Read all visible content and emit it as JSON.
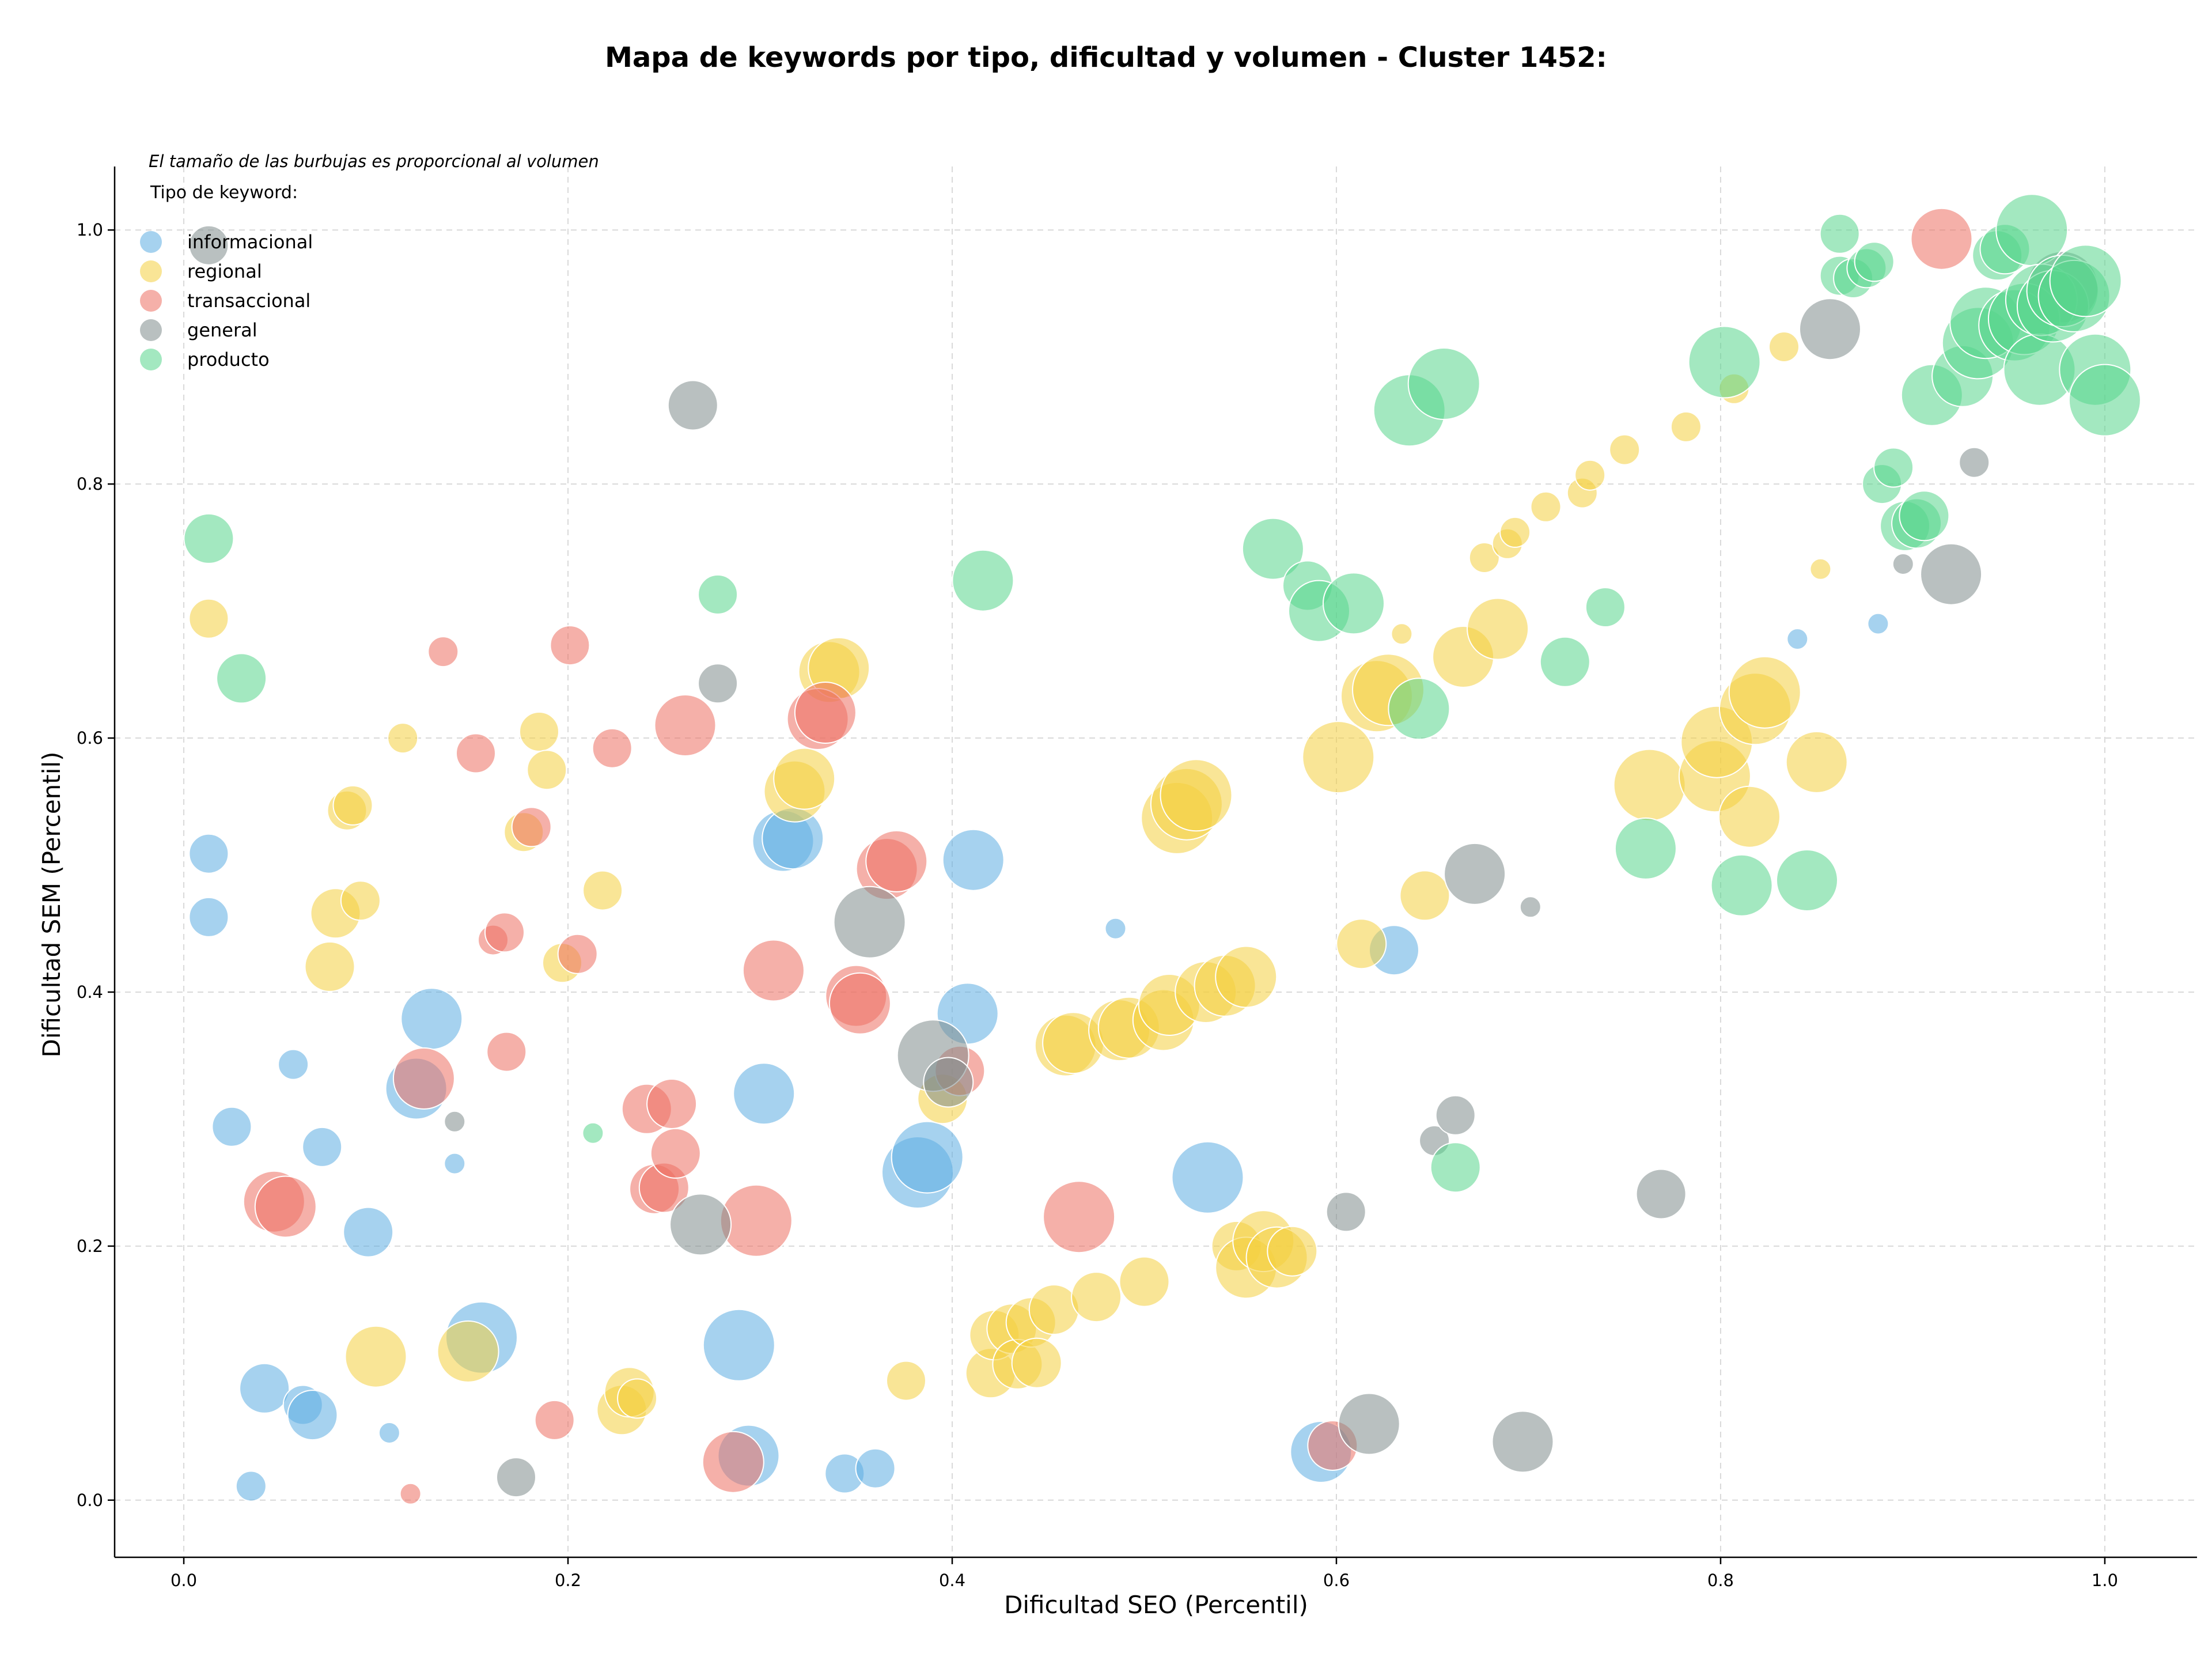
{
  "chart_data": {
    "type": "scatter",
    "title": "Mapa de keywords por tipo, dificultad y volumen - Cluster 1452:",
    "subtitle": "El tamaño de las burbujas es proporcional al volumen",
    "xlabel": "Dificultad SEO (Percentil)",
    "ylabel": "Dificultad SEM (Percentil)",
    "xlim": [
      -0.036,
      1.048
    ],
    "ylim": [
      -0.045,
      1.05
    ],
    "xticks": [
      "0.0",
      "0.2",
      "0.4",
      "0.6",
      "0.8",
      "1.0"
    ],
    "yticks": [
      "0.0",
      "0.2",
      "0.4",
      "0.6",
      "0.8",
      "1.0"
    ],
    "grid": true,
    "legend": {
      "title": "Tipo de keyword:",
      "placement": "top-left"
    },
    "series": [
      {
        "name": "informacional",
        "color": "#5dade2",
        "points": [
          [
            0.013,
            0.509,
            2
          ],
          [
            0.013,
            0.459,
            2
          ],
          [
            0.025,
            0.294,
            2
          ],
          [
            0.035,
            0.011,
            1
          ],
          [
            0.042,
            0.088,
            3
          ],
          [
            0.057,
            0.343,
            1
          ],
          [
            0.062,
            0.075,
            2
          ],
          [
            0.067,
            0.067,
            3
          ],
          [
            0.072,
            0.278,
            2
          ],
          [
            0.096,
            0.211,
            3
          ],
          [
            0.107,
            0.053,
            0
          ],
          [
            0.121,
            0.324,
            4
          ],
          [
            0.129,
            0.379,
            4
          ],
          [
            0.141,
            0.265,
            0
          ],
          [
            0.155,
            0.128,
            5
          ],
          [
            0.289,
            0.122,
            5
          ],
          [
            0.294,
            0.035,
            4
          ],
          [
            0.302,
            0.32,
            4
          ],
          [
            0.312,
            0.519,
            4
          ],
          [
            0.317,
            0.521,
            4
          ],
          [
            0.344,
            0.021,
            2
          ],
          [
            0.36,
            0.025,
            2
          ],
          [
            0.382,
            0.258,
            5
          ],
          [
            0.387,
            0.27,
            5
          ],
          [
            0.411,
            0.504,
            4
          ],
          [
            0.408,
            0.383,
            4
          ],
          [
            0.533,
            0.254,
            5
          ],
          [
            0.485,
            0.45,
            0
          ],
          [
            0.592,
            0.038,
            4
          ],
          [
            0.63,
            0.433,
            3
          ],
          [
            0.84,
            0.678,
            0
          ],
          [
            0.882,
            0.69,
            0
          ]
        ]
      },
      {
        "name": "regional",
        "color": "#f4d03f",
        "points": [
          [
            0.013,
            0.694,
            2
          ],
          [
            0.076,
            0.42,
            3
          ],
          [
            0.079,
            0.462,
            3
          ],
          [
            0.085,
            0.543,
            2
          ],
          [
            0.088,
            0.547,
            2
          ],
          [
            0.092,
            0.472,
            2
          ],
          [
            0.1,
            0.113,
            4
          ],
          [
            0.114,
            0.6,
            1
          ],
          [
            0.148,
            0.117,
            4
          ],
          [
            0.177,
            0.526,
            2
          ],
          [
            0.185,
            0.605,
            2
          ],
          [
            0.189,
            0.575,
            2
          ],
          [
            0.197,
            0.423,
            2
          ],
          [
            0.218,
            0.48,
            2
          ],
          [
            0.228,
            0.071,
            3
          ],
          [
            0.232,
            0.085,
            3
          ],
          [
            0.236,
            0.08,
            2
          ],
          [
            0.318,
            0.558,
            4
          ],
          [
            0.323,
            0.568,
            4
          ],
          [
            0.336,
            0.652,
            4
          ],
          [
            0.341,
            0.655,
            4
          ],
          [
            0.376,
            0.094,
            2
          ],
          [
            0.395,
            0.316,
            3
          ],
          [
            0.42,
            0.1,
            3
          ],
          [
            0.422,
            0.13,
            3
          ],
          [
            0.431,
            0.135,
            3
          ],
          [
            0.434,
            0.107,
            3
          ],
          [
            0.441,
            0.14,
            3
          ],
          [
            0.444,
            0.108,
            3
          ],
          [
            0.453,
            0.15,
            3
          ],
          [
            0.459,
            0.358,
            4
          ],
          [
            0.463,
            0.36,
            4
          ],
          [
            0.475,
            0.16,
            3
          ],
          [
            0.487,
            0.37,
            4
          ],
          [
            0.492,
            0.372,
            4
          ],
          [
            0.5,
            0.172,
            3
          ],
          [
            0.51,
            0.378,
            4
          ],
          [
            0.513,
            0.39,
            4
          ],
          [
            0.517,
            0.537,
            5
          ],
          [
            0.522,
            0.548,
            5
          ],
          [
            0.527,
            0.555,
            5
          ],
          [
            0.532,
            0.4,
            4
          ],
          [
            0.542,
            0.405,
            4
          ],
          [
            0.553,
            0.412,
            4
          ],
          [
            0.548,
            0.2,
            3
          ],
          [
            0.553,
            0.183,
            4
          ],
          [
            0.562,
            0.204,
            4
          ],
          [
            0.569,
            0.191,
            4
          ],
          [
            0.577,
            0.196,
            3
          ],
          [
            0.601,
            0.585,
            5
          ],
          [
            0.613,
            0.438,
            3
          ],
          [
            0.621,
            0.633,
            5
          ],
          [
            0.627,
            0.638,
            5
          ],
          [
            0.634,
            0.682,
            0
          ],
          [
            0.646,
            0.476,
            3
          ],
          [
            0.666,
            0.664,
            4
          ],
          [
            0.684,
            0.686,
            4
          ],
          [
            0.677,
            0.742,
            1
          ],
          [
            0.689,
            0.753,
            1
          ],
          [
            0.693,
            0.762,
            1
          ],
          [
            0.709,
            0.782,
            1
          ],
          [
            0.728,
            0.793,
            1
          ],
          [
            0.732,
            0.807,
            1
          ],
          [
            0.75,
            0.827,
            1
          ],
          [
            0.782,
            0.845,
            1
          ],
          [
            0.763,
            0.563,
            5
          ],
          [
            0.797,
            0.57,
            5
          ],
          [
            0.798,
            0.597,
            5
          ],
          [
            0.807,
            0.875,
            1
          ],
          [
            0.815,
            0.538,
            4
          ],
          [
            0.818,
            0.623,
            5
          ],
          [
            0.823,
            0.636,
            5
          ],
          [
            0.833,
            0.908,
            1
          ],
          [
            0.85,
            0.581,
            4
          ],
          [
            0.852,
            0.733,
            0
          ]
        ]
      },
      {
        "name": "transaccional",
        "color": "#ec7063",
        "points": [
          [
            0.047,
            0.235,
            4
          ],
          [
            0.053,
            0.231,
            4
          ],
          [
            0.118,
            0.005,
            0
          ],
          [
            0.125,
            0.332,
            4
          ],
          [
            0.135,
            0.668,
            1
          ],
          [
            0.152,
            0.588,
            2
          ],
          [
            0.161,
            0.441,
            1
          ],
          [
            0.167,
            0.447,
            2
          ],
          [
            0.168,
            0.353,
            2
          ],
          [
            0.181,
            0.53,
            2
          ],
          [
            0.193,
            0.063,
            2
          ],
          [
            0.201,
            0.673,
            2
          ],
          [
            0.205,
            0.43,
            2
          ],
          [
            0.223,
            0.592,
            2
          ],
          [
            0.241,
            0.308,
            3
          ],
          [
            0.245,
            0.245,
            3
          ],
          [
            0.25,
            0.246,
            3
          ],
          [
            0.254,
            0.312,
            3
          ],
          [
            0.256,
            0.273,
            3
          ],
          [
            0.261,
            0.61,
            4
          ],
          [
            0.286,
            0.03,
            4
          ],
          [
            0.298,
            0.22,
            5
          ],
          [
            0.307,
            0.417,
            4
          ],
          [
            0.33,
            0.615,
            4
          ],
          [
            0.334,
            0.62,
            4
          ],
          [
            0.35,
            0.397,
            4
          ],
          [
            0.352,
            0.391,
            4
          ],
          [
            0.366,
            0.497,
            4
          ],
          [
            0.371,
            0.503,
            4
          ],
          [
            0.404,
            0.338,
            3
          ],
          [
            0.466,
            0.223,
            5
          ],
          [
            0.598,
            0.043,
            3
          ],
          [
            0.915,
            0.993,
            4
          ]
        ]
      },
      {
        "name": "general",
        "color": "#7f8c8d",
        "points": [
          [
            0.013,
            0.988,
            2
          ],
          [
            0.141,
            0.298,
            0
          ],
          [
            0.173,
            0.018,
            2
          ],
          [
            0.265,
            0.862,
            3
          ],
          [
            0.269,
            0.217,
            4
          ],
          [
            0.278,
            0.643,
            2
          ],
          [
            0.357,
            0.455,
            5
          ],
          [
            0.39,
            0.35,
            5
          ],
          [
            0.398,
            0.329,
            3
          ],
          [
            0.605,
            0.227,
            2
          ],
          [
            0.617,
            0.06,
            4
          ],
          [
            0.651,
            0.283,
            1
          ],
          [
            0.662,
            0.303,
            2
          ],
          [
            0.672,
            0.493,
            4
          ],
          [
            0.697,
            0.046,
            4
          ],
          [
            0.701,
            0.467,
            0
          ],
          [
            0.769,
            0.241,
            3
          ],
          [
            0.857,
            0.922,
            4
          ],
          [
            0.895,
            0.737,
            0
          ],
          [
            0.92,
            0.729,
            4
          ],
          [
            0.932,
            0.817,
            1
          ],
          [
            0.978,
            0.955,
            5
          ]
        ]
      },
      {
        "name": "producto",
        "color": "#58d68d",
        "points": [
          [
            0.013,
            0.757,
            3
          ],
          [
            0.03,
            0.647,
            3
          ],
          [
            0.213,
            0.289,
            0
          ],
          [
            0.278,
            0.713,
            2
          ],
          [
            0.416,
            0.724,
            4
          ],
          [
            0.567,
            0.749,
            4
          ],
          [
            0.585,
            0.72,
            3
          ],
          [
            0.591,
            0.7,
            4
          ],
          [
            0.609,
            0.706,
            4
          ],
          [
            0.643,
            0.623,
            4
          ],
          [
            0.638,
            0.858,
            5
          ],
          [
            0.656,
            0.879,
            5
          ],
          [
            0.662,
            0.262,
            3
          ],
          [
            0.74,
            0.703,
            2
          ],
          [
            0.719,
            0.66,
            3
          ],
          [
            0.761,
            0.513,
            4
          ],
          [
            0.811,
            0.484,
            4
          ],
          [
            0.802,
            0.896,
            5
          ],
          [
            0.845,
            0.488,
            4
          ],
          [
            0.862,
            0.997,
            2
          ],
          [
            0.862,
            0.964,
            2
          ],
          [
            0.869,
            0.962,
            2
          ],
          [
            0.876,
            0.97,
            2
          ],
          [
            0.88,
            0.975,
            2
          ],
          [
            0.884,
            0.8,
            2
          ],
          [
            0.89,
            0.813,
            2
          ],
          [
            0.896,
            0.767,
            3
          ],
          [
            0.902,
            0.769,
            3
          ],
          [
            0.906,
            0.775,
            3
          ],
          [
            0.91,
            0.87,
            4
          ],
          [
            0.926,
            0.885,
            4
          ],
          [
            0.934,
            0.911,
            5
          ],
          [
            0.938,
            0.927,
            5
          ],
          [
            0.944,
            0.98,
            3
          ],
          [
            0.948,
            0.985,
            3
          ],
          [
            0.953,
            0.925,
            5
          ],
          [
            0.958,
            0.93,
            5
          ],
          [
            0.962,
            1.0,
            5
          ],
          [
            0.966,
            0.89,
            5
          ],
          [
            0.967,
            0.945,
            5
          ],
          [
            0.973,
            0.94,
            5
          ],
          [
            0.978,
            0.952,
            5
          ],
          [
            0.984,
            0.948,
            5
          ],
          [
            0.99,
            0.96,
            5
          ],
          [
            0.995,
            0.89,
            5
          ],
          [
            1.0,
            0.866,
            5
          ]
        ]
      }
    ]
  }
}
